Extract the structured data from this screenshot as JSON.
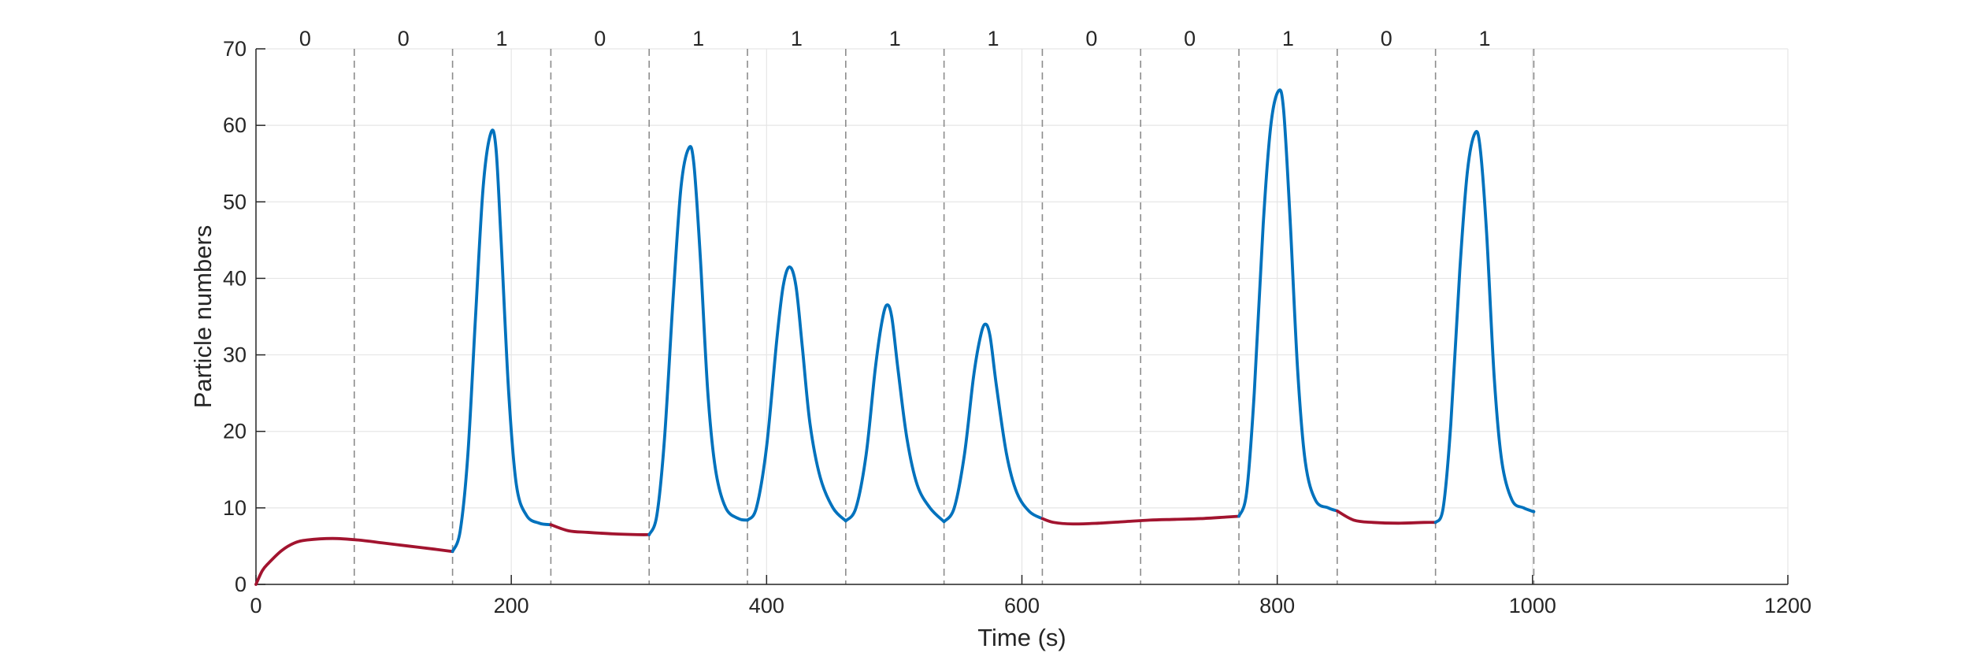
{
  "chart_data": {
    "type": "line",
    "xlabel": "Time (s)",
    "ylabel": "Particle numbers",
    "xlim": [
      0,
      1200
    ],
    "ylim": [
      0,
      70
    ],
    "xticks": [
      0,
      200,
      400,
      600,
      800,
      1000,
      1200
    ],
    "yticks": [
      0,
      10,
      20,
      30,
      40,
      50,
      60,
      70
    ],
    "grid": true,
    "legend": "none",
    "colors": {
      "zero_segment": "#A2142F",
      "one_segment": "#0072BD",
      "divider": "#8c8c8c",
      "grid": "#e6e6e6",
      "axis": "#262626"
    },
    "interval_boundaries": [
      77,
      154,
      231,
      308,
      385,
      462,
      539,
      616,
      693,
      770,
      847,
      924,
      1001
    ],
    "bits": [
      "0",
      "0",
      "1",
      "0",
      "1",
      "1",
      "1",
      "1",
      "0",
      "0",
      "1",
      "0",
      "1"
    ],
    "segments": [
      {
        "bit": "0",
        "t": [
          0,
          5,
          10,
          20,
          30,
          40,
          60,
          80,
          100,
          120,
          140,
          154
        ],
        "y": [
          0,
          1.8,
          2.8,
          4.4,
          5.4,
          5.8,
          6.0,
          5.8,
          5.4,
          5.0,
          4.6,
          4.3
        ]
      },
      {
        "bit": "1",
        "t": [
          154,
          160,
          166,
          172,
          178,
          184,
          188,
          192,
          198,
          204,
          212,
          222,
          231
        ],
        "y": [
          4.3,
          7,
          17,
          35,
          52,
          59,
          57,
          45,
          25,
          13,
          9,
          8,
          7.8
        ]
      },
      {
        "bit": "0",
        "t": [
          231,
          245,
          260,
          280,
          300,
          308
        ],
        "y": [
          7.8,
          7.0,
          6.8,
          6.6,
          6.5,
          6.5
        ]
      },
      {
        "bit": "1",
        "t": [
          308,
          314,
          320,
          327,
          333,
          339,
          343,
          348,
          354,
          360,
          368,
          378,
          385
        ],
        "y": [
          6.5,
          9,
          19,
          38,
          52,
          57,
          55,
          43,
          25,
          15,
          10,
          8.6,
          8.4
        ]
      },
      {
        "bit": "1",
        "t": [
          385,
          392,
          400,
          408,
          413,
          418,
          423,
          428,
          434,
          442,
          452,
          462
        ],
        "y": [
          8.4,
          10,
          18,
          32,
          39,
          41.5,
          39,
          31,
          21,
          14,
          10,
          8.3
        ]
      },
      {
        "bit": "1",
        "t": [
          462,
          470,
          478,
          485,
          490,
          494,
          498,
          503,
          510,
          518,
          528,
          539
        ],
        "y": [
          8.3,
          10,
          17,
          28,
          34,
          36.5,
          35,
          28,
          19,
          13,
          10,
          8.2
        ]
      },
      {
        "bit": "1",
        "t": [
          539,
          547,
          555,
          562,
          567,
          571,
          575,
          580,
          588,
          596,
          606,
          616
        ],
        "y": [
          8.2,
          10,
          17,
          27,
          32,
          34,
          32.5,
          26,
          17,
          12,
          9.5,
          8.6
        ]
      },
      {
        "bit": "0",
        "t": [
          616,
          625,
          640,
          660,
          680,
          700,
          720,
          740,
          760,
          770
        ],
        "y": [
          8.6,
          8.1,
          7.9,
          8.0,
          8.2,
          8.4,
          8.5,
          8.6,
          8.8,
          8.9
        ]
      },
      {
        "bit": "1",
        "t": [
          770,
          776,
          782,
          789,
          795,
          801,
          805,
          810,
          816,
          822,
          830,
          840,
          847
        ],
        "y": [
          8.9,
          12,
          25,
          47,
          60,
          64.5,
          62,
          48,
          28,
          16,
          11,
          10,
          9.6
        ]
      },
      {
        "bit": "0",
        "t": [
          847,
          860,
          875,
          895,
          915,
          924
        ],
        "y": [
          9.6,
          8.4,
          8.1,
          8.0,
          8.1,
          8.1
        ]
      },
      {
        "bit": "1",
        "t": [
          924,
          930,
          936,
          943,
          949,
          955,
          959,
          964,
          970,
          976,
          984,
          993,
          1001
        ],
        "y": [
          8.1,
          10,
          21,
          41,
          54,
          59,
          57,
          46,
          27,
          16,
          11,
          10,
          9.5
        ]
      }
    ]
  }
}
